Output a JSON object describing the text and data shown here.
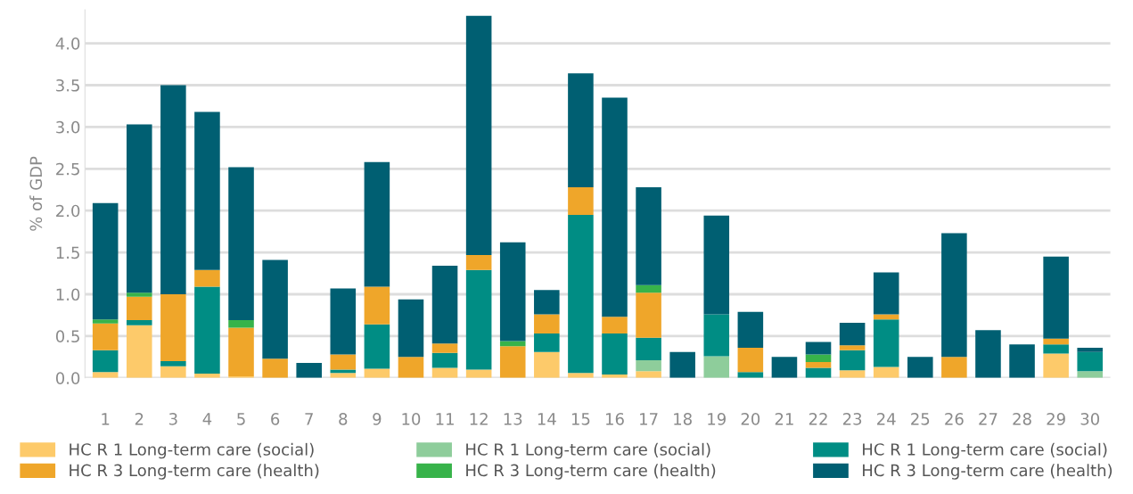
{
  "chart_data": {
    "type": "bar",
    "stacked": true,
    "ylabel": "% of GDP",
    "categories": [
      "1",
      "2",
      "3",
      "4",
      "5",
      "6",
      "7",
      "8",
      "9",
      "10",
      "11",
      "12",
      "13",
      "14",
      "15",
      "16",
      "17",
      "18",
      "19",
      "20",
      "21",
      "22",
      "23",
      "24",
      "25",
      "26",
      "27",
      "28",
      "29",
      "30"
    ],
    "series": [
      {
        "name": "HC R 1 Long-term care (social)",
        "color": "#fdca6a",
        "values": [
          0.07,
          0.63,
          0.14,
          0.05,
          0.02,
          0,
          0,
          0.06,
          0.11,
          0,
          0.12,
          0.1,
          0,
          0.31,
          0.06,
          0.04,
          0.08,
          0,
          0,
          0,
          0,
          0,
          0.09,
          0.13,
          0,
          0,
          0,
          0,
          0.29,
          0
        ]
      },
      {
        "name": "HC R 1 Long-term care (social)",
        "color": "#8ecd9b",
        "values": [
          0,
          0,
          0,
          0,
          0,
          0,
          0,
          0,
          0,
          0,
          0,
          0,
          0,
          0,
          0,
          0,
          0.13,
          0,
          0.26,
          0,
          0,
          0,
          0,
          0,
          0,
          0,
          0,
          0,
          0,
          0.08
        ]
      },
      {
        "name": "HC R 1 Long-term care (social)",
        "color": "#008d84",
        "values": [
          0.26,
          0.06,
          0.06,
          1.04,
          0,
          0,
          0,
          0.04,
          0.53,
          0,
          0.18,
          1.19,
          0,
          0.22,
          1.89,
          0.49,
          0.27,
          0,
          0.5,
          0.07,
          0,
          0.12,
          0.24,
          0.57,
          0,
          0,
          0,
          0,
          0.11,
          0.23
        ]
      },
      {
        "name": "HC R 3 Long-term care (health)",
        "color": "#efa62a",
        "values": [
          0.32,
          0.28,
          0.8,
          0.2,
          0.58,
          0.23,
          0,
          0.18,
          0.45,
          0.25,
          0.11,
          0.18,
          0.38,
          0.23,
          0.33,
          0.2,
          0.54,
          0,
          0,
          0.29,
          0,
          0.07,
          0.06,
          0.06,
          0,
          0.25,
          0,
          0,
          0.07,
          0
        ]
      },
      {
        "name": "HC R 3 Long-term care (health)",
        "color": "#37b34a",
        "values": [
          0.05,
          0.05,
          0,
          0,
          0.09,
          0,
          0,
          0,
          0,
          0,
          0,
          0,
          0.06,
          0,
          0,
          0,
          0.09,
          0,
          0,
          0,
          0,
          0.09,
          0,
          0,
          0,
          0,
          0,
          0,
          0,
          0
        ]
      },
      {
        "name": "HC R 3 Long-term care (health)",
        "color": "#005f72",
        "values": [
          1.39,
          2.01,
          2.5,
          1.89,
          1.83,
          1.18,
          0.18,
          0.79,
          1.49,
          0.69,
          0.93,
          2.86,
          1.18,
          0.29,
          1.36,
          2.62,
          1.17,
          0.31,
          1.18,
          0.43,
          0.25,
          0.15,
          0.27,
          0.5,
          0.25,
          1.48,
          0.57,
          0.4,
          0.98,
          0.05
        ]
      }
    ],
    "ylim": [
      0,
      4.4
    ],
    "yticks": [
      {
        "value": 0,
        "label": "0.0"
      },
      0.5,
      {
        "value": 1,
        "label": "1.0"
      },
      1.5,
      {
        "value": 2,
        "label": "2.0"
      },
      2.5,
      {
        "value": 3,
        "label": "3.0"
      },
      3.5,
      {
        "value": 4,
        "label": "4.0"
      }
    ],
    "grid": "y",
    "legend": "bottom"
  }
}
